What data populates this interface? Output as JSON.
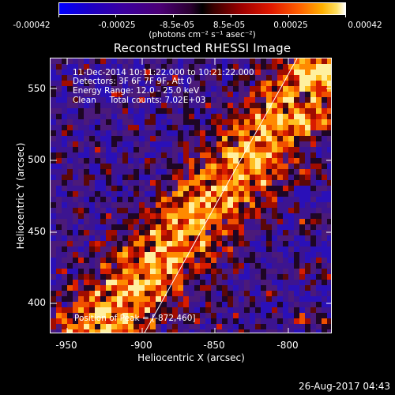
{
  "colorbar": {
    "ticks": [
      "-0.00042",
      "-0.00025",
      "-8.5e-05",
      "8.5e-05",
      "0.00025",
      "0.00042"
    ],
    "units": "(photons cm⁻² s⁻¹ asec⁻²)"
  },
  "image": {
    "title": "Reconstructed RHESSI Image",
    "annotation_lines": [
      "11-Dec-2014 10:11:22.000 to 10:21:22.000",
      "Detectors: 3F 6F 7F 9F, Att 0",
      "Energy Range: 12.0 - 25.0 keV",
      "Clean     Total counts: 7.02E+03"
    ],
    "peak_label": "Position of Peak = [-872,460]",
    "x_axis": {
      "label": "Heliocentric X (arcsec)",
      "ticks": [
        "-950",
        "-900",
        "-850",
        "-800"
      ]
    },
    "y_axis": {
      "label": "Heliocentric Y (arcsec)",
      "ticks": [
        "550",
        "500",
        "450",
        "400"
      ]
    }
  },
  "footer": {
    "timestamp": "26-Aug-2017 04:43"
  },
  "colors": {
    "background": "#000000",
    "foreground": "#ffffff",
    "map_low": "#4b0076",
    "map_mid": "#e01800",
    "map_high": "#ffe060"
  }
}
